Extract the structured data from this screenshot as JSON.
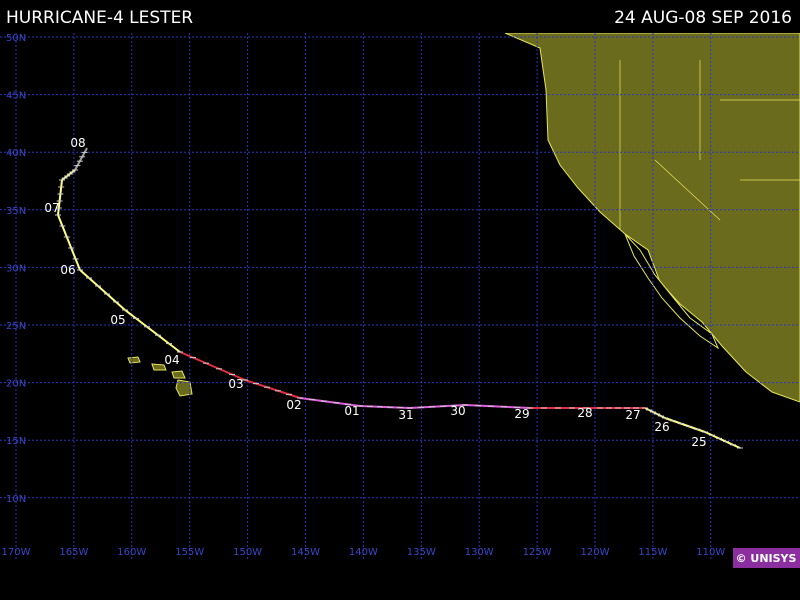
{
  "header": {
    "title": "HURRICANE-4 LESTER",
    "dates": "24 AUG-08 SEP 2016"
  },
  "map": {
    "lat_labels": [
      "50N",
      "45N",
      "40N",
      "35N",
      "30N",
      "25N",
      "20N",
      "15N",
      "10N"
    ],
    "lon_labels": [
      "170W",
      "165W",
      "160W",
      "155W",
      "150W",
      "145W",
      "140W",
      "135W",
      "130W",
      "125W",
      "120W",
      "115W",
      "110W"
    ],
    "track_labels": [
      "25",
      "26",
      "27",
      "28",
      "29",
      "30",
      "31",
      "01",
      "02",
      "03",
      "04",
      "05",
      "06",
      "07",
      "08"
    ],
    "credit": "© UNISYS"
  }
}
